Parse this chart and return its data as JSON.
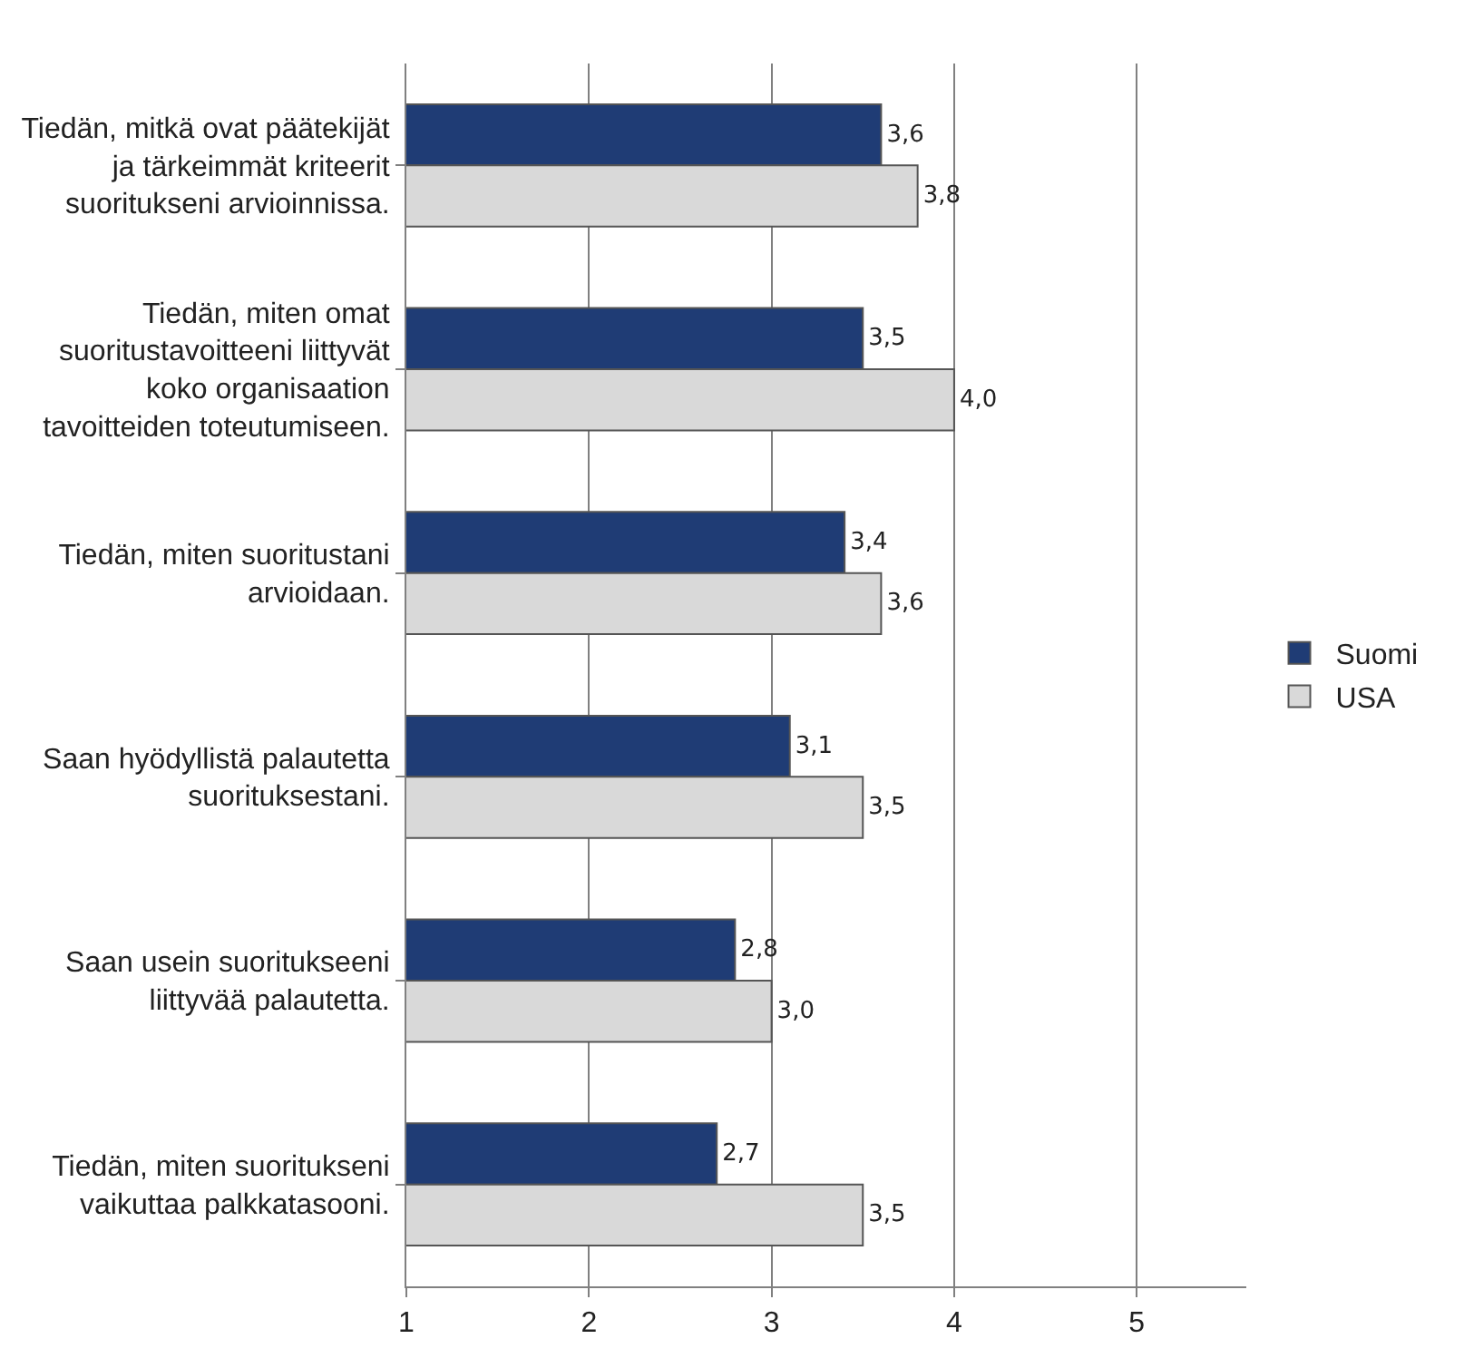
{
  "chart_data": {
    "type": "bar",
    "orientation": "horizontal",
    "categories": [
      "Tiedän, mitkä ovat päätekijät ja tärkeimmät kriteerit suoritukseni arvioinnissa.",
      "Tiedän, miten omat suoritustavoitteeni liittyvät koko organisaation tavoitteiden toteutumiseen.",
      "Tiedän, miten suoritustani arvioidaan.",
      "Saan hyödyllistä palautetta suorituksestani.",
      "Saan usein suoritukseeni liittyvää palautetta.",
      "Tiedän, miten suoritukseni vaikuttaa palkkatasooni."
    ],
    "series": [
      {
        "name": "Suomi",
        "color": "#1f3c75",
        "values": [
          3.6,
          3.5,
          3.4,
          3.1,
          2.8,
          2.7
        ],
        "value_labels": [
          "3,6",
          "3,5",
          "3,4",
          "3,1",
          "2,8",
          "2,7"
        ]
      },
      {
        "name": "USA",
        "color": "#d9d9d9",
        "values": [
          3.8,
          4.0,
          3.6,
          3.5,
          3.0,
          3.5
        ],
        "value_labels": [
          "3,8",
          "4,0",
          "3,6",
          "3,5",
          "3,0",
          "3,5"
        ]
      }
    ],
    "xlim": [
      1,
      5.6
    ],
    "xticks": [
      1,
      2,
      3,
      4,
      5
    ],
    "grid": "x",
    "legend": "right"
  }
}
